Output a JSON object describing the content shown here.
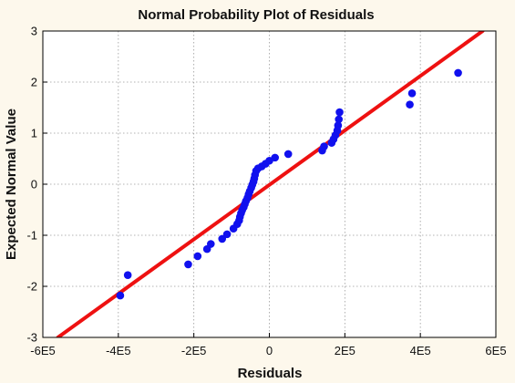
{
  "chart_data": {
    "type": "scatter",
    "title": "Normal Probability Plot of Residuals",
    "xlabel": "Residuals",
    "ylabel": "Expected Normal Value",
    "xlim": [
      -600000,
      600000
    ],
    "ylim": [
      -3,
      3
    ],
    "x_ticks": [
      -600000,
      -400000,
      -200000,
      0,
      200000,
      400000,
      600000
    ],
    "x_tick_labels": [
      "-6E5",
      "-4E5",
      "-2E5",
      "0",
      "2E5",
      "4E5",
      "6E5"
    ],
    "y_ticks": [
      -3,
      -2,
      -1,
      0,
      1,
      2,
      3
    ],
    "y_tick_labels": [
      "-3",
      "-2",
      "-1",
      "0",
      "1",
      "2",
      "3"
    ],
    "grid": true,
    "marker_color": "#1010ee",
    "line_color": "#ee1111",
    "plot_background": "#ffffff",
    "page_background": "#fdf8ec",
    "fit_line": {
      "x": [
        -560000,
        565000
      ],
      "y": [
        -3,
        3
      ]
    },
    "points": {
      "x": [
        -395000,
        -375000,
        -215000,
        -190000,
        -165000,
        -155000,
        -125000,
        -112000,
        -95000,
        -85000,
        -80000,
        -78000,
        -75000,
        -72000,
        -68000,
        -65000,
        -62000,
        -58000,
        -55000,
        -52000,
        -48000,
        -45000,
        -42000,
        -40000,
        -38000,
        -35000,
        -30000,
        -20000,
        -10000,
        0,
        15000,
        50000,
        140000,
        145000,
        165000,
        170000,
        175000,
        180000,
        182000,
        184000,
        186000,
        372000,
        378000,
        500000
      ],
      "y": [
        -2.18,
        -1.78,
        -1.57,
        -1.41,
        -1.27,
        -1.17,
        -1.07,
        -0.98,
        -0.87,
        -0.78,
        -0.71,
        -0.64,
        -0.57,
        -0.51,
        -0.45,
        -0.39,
        -0.33,
        -0.27,
        -0.2,
        -0.14,
        -0.07,
        -0.01,
        0.05,
        0.11,
        0.18,
        0.26,
        0.31,
        0.35,
        0.4,
        0.46,
        0.52,
        0.59,
        0.66,
        0.74,
        0.81,
        0.88,
        0.96,
        1.05,
        1.15,
        1.27,
        1.41,
        1.56,
        1.78,
        2.18
      ]
    }
  }
}
